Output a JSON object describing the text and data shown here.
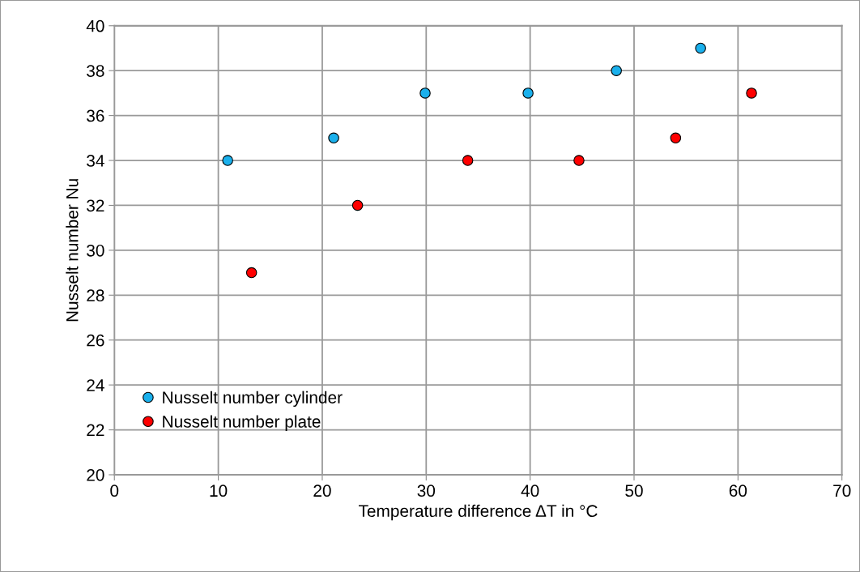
{
  "chart_data": {
    "type": "scatter",
    "xlabel": "Temperature difference ΔT in °C",
    "ylabel": "Nusselt number Nu",
    "series": [
      {
        "name": "Nusselt number cylinder",
        "color": "#1ab0ec",
        "x": [
          10.9,
          21.1,
          29.9,
          39.8,
          48.3,
          56.4
        ],
        "values": [
          34,
          35,
          37,
          37,
          38,
          39
        ]
      },
      {
        "name": "Nusselt number plate",
        "color": "#ff0000",
        "x": [
          13.2,
          23.4,
          34.0,
          44.7,
          54.0,
          61.3
        ],
        "values": [
          29,
          32,
          34,
          34,
          35,
          37
        ]
      }
    ],
    "xlim": [
      0,
      70
    ],
    "xticks": [
      0,
      10,
      20,
      30,
      40,
      50,
      60,
      70
    ],
    "ylim": [
      20,
      40
    ],
    "yticks": [
      20,
      22,
      24,
      26,
      28,
      30,
      32,
      34,
      36,
      38,
      40
    ],
    "grid": true,
    "legend": "bottom left",
    "marker": "circle"
  }
}
